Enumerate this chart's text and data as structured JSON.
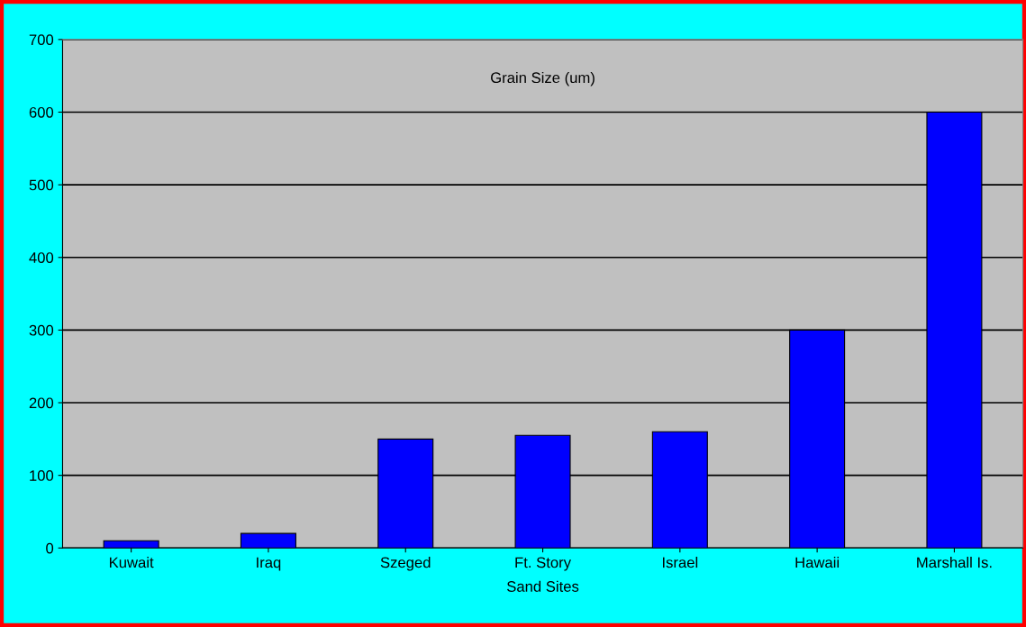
{
  "chart_data": {
    "type": "bar",
    "title": "Grain Size (um)",
    "xlabel": "Sand Sites",
    "categories": [
      "Kuwait",
      "Iraq",
      "Szeged",
      "Ft. Story",
      "Israel",
      "Hawaii",
      "Marshall Is."
    ],
    "values": [
      10,
      20,
      150,
      155,
      160,
      300,
      600
    ],
    "color": "#0000ff",
    "ylim": [
      0,
      700
    ],
    "yticks": [
      0,
      100,
      200,
      300,
      400,
      500,
      600,
      700
    ],
    "grid": "y",
    "legend": false
  }
}
